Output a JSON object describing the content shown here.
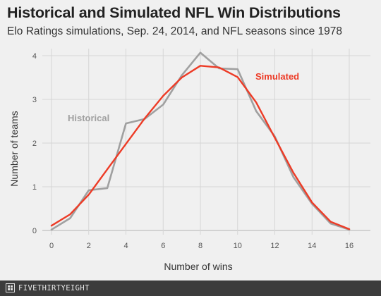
{
  "chart_data": {
    "type": "line",
    "title": "Historical and Simulated NFL Win Distributions",
    "subtitle": "Elo Ratings simulations, Sep. 24, 2014, and NFL seasons since 1978",
    "xlabel": "Number of wins",
    "ylabel": "Number of teams",
    "xlim": [
      0,
      16
    ],
    "ylim": [
      0,
      4
    ],
    "xticks": [
      0,
      2,
      4,
      6,
      8,
      10,
      12,
      14,
      16
    ],
    "yticks": [
      0,
      1,
      2,
      3,
      4
    ],
    "grid": true,
    "x": [
      0,
      1,
      2,
      3,
      4,
      5,
      6,
      7,
      8,
      9,
      10,
      11,
      12,
      13,
      14,
      15,
      16
    ],
    "series": [
      {
        "name": "Historical",
        "color": "#a0a0a0",
        "values": [
          0.02,
          0.28,
          0.92,
          0.97,
          2.45,
          2.55,
          2.88,
          3.55,
          4.07,
          3.71,
          3.69,
          2.73,
          2.15,
          1.22,
          0.61,
          0.16,
          0.02
        ]
      },
      {
        "name": "Simulated",
        "color": "#ed3b26",
        "values": [
          0.11,
          0.37,
          0.82,
          1.4,
          1.98,
          2.56,
          3.08,
          3.5,
          3.77,
          3.73,
          3.51,
          2.93,
          2.12,
          1.32,
          0.64,
          0.2,
          0.03
        ]
      }
    ]
  },
  "footer": {
    "brand": "FIVETHIRTYEIGHT"
  }
}
